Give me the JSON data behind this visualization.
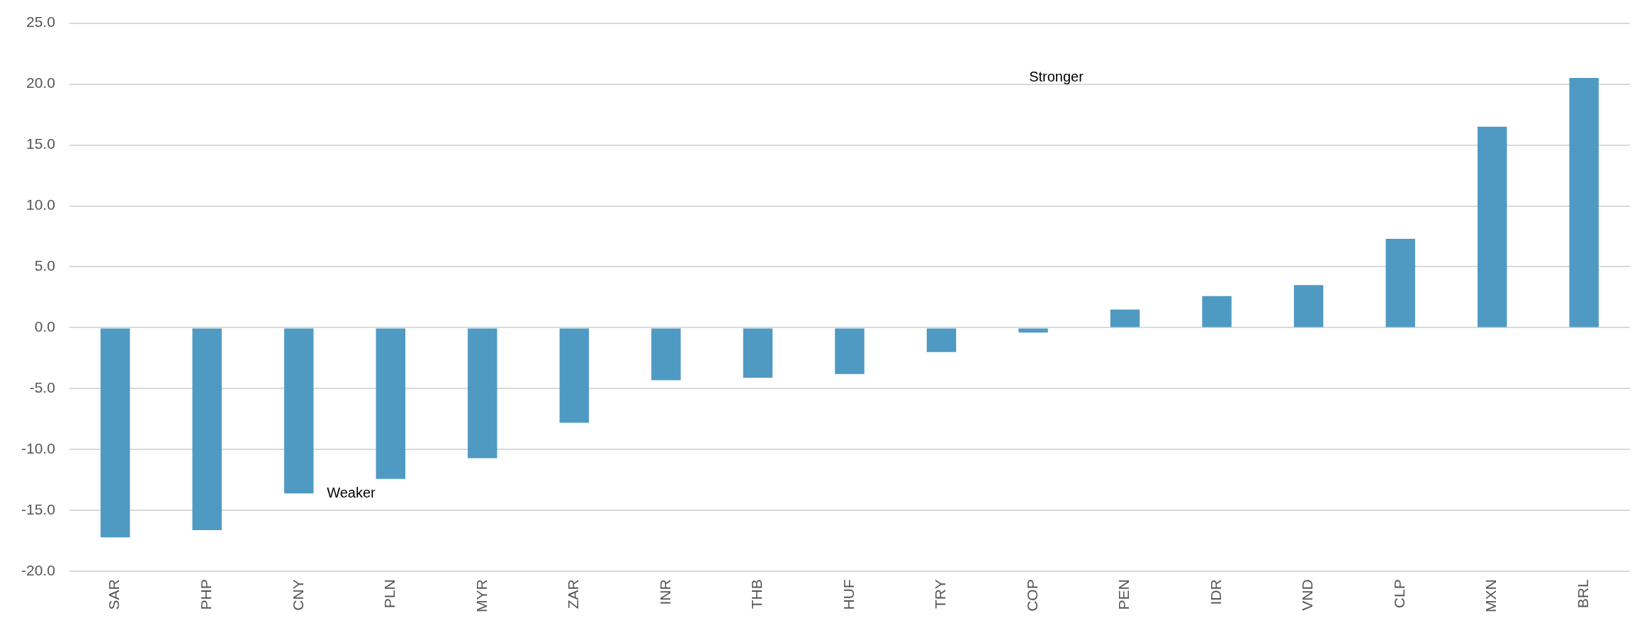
{
  "chart_data": {
    "type": "bar",
    "categories": [
      "SAR",
      "PHP",
      "CNY",
      "PLN",
      "MYR",
      "ZAR",
      "INR",
      "THB",
      "HUF",
      "TRY",
      "COP",
      "PEN",
      "IDR",
      "VND",
      "CLP",
      "MXN",
      "BRL"
    ],
    "values": [
      -17.2,
      -16.6,
      -13.6,
      -12.4,
      -10.7,
      -7.8,
      -4.3,
      -4.1,
      -3.8,
      -2.0,
      -0.4,
      1.5,
      2.6,
      3.5,
      7.3,
      16.5,
      20.5
    ],
    "color": "#4f9ac3",
    "ylim": [
      -20,
      25
    ],
    "yticks": [
      {
        "value": -20,
        "label": "-20.0"
      },
      {
        "value": -15,
        "label": "-15.0"
      },
      {
        "value": -10,
        "label": "-10.0"
      },
      {
        "value": -5,
        "label": "-5.0"
      },
      {
        "value": 0,
        "label": "0.0"
      },
      {
        "value": 5,
        "label": "5.0"
      },
      {
        "value": 10,
        "label": "10.0"
      },
      {
        "value": 15,
        "label": "15.0"
      },
      {
        "value": 20,
        "label": "20.0"
      },
      {
        "value": 25,
        "label": "25.0"
      }
    ],
    "grid": "y",
    "annotations": [
      "Stronger",
      "Weaker"
    ]
  }
}
